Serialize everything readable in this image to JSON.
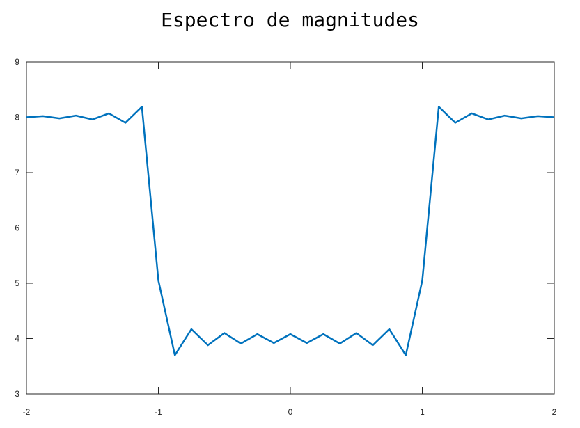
{
  "chart_data": {
    "type": "line",
    "title": "Espectro de magnitudes",
    "xlabel": "",
    "ylabel": "",
    "xlim": [
      -2,
      2
    ],
    "ylim": [
      3,
      9
    ],
    "xticks": [
      -2,
      -1,
      0,
      1,
      2
    ],
    "yticks": [
      3,
      4,
      5,
      6,
      7,
      8,
      9
    ],
    "xtick_labels": [
      "-2",
      "-1",
      "0",
      "1",
      "2"
    ],
    "ytick_labels": [
      "3",
      "4",
      "5",
      "6",
      "7",
      "8",
      "9"
    ],
    "grid": false,
    "line_color": "#0072BD",
    "series": [
      {
        "x": [
          -2.0,
          -1.875,
          -1.75,
          -1.625,
          -1.5,
          -1.375,
          -1.25,
          -1.125,
          -1.0,
          -0.875,
          -0.75,
          -0.625,
          -0.5,
          -0.375,
          -0.25,
          -0.125,
          0.0,
          0.125,
          0.25,
          0.375,
          0.5,
          0.625,
          0.75,
          0.875,
          1.0,
          1.125,
          1.25,
          1.375,
          1.5,
          1.625,
          1.75,
          1.875,
          2.0
        ],
        "y": [
          8.0,
          8.02,
          7.98,
          8.03,
          7.96,
          8.07,
          7.9,
          8.19,
          5.05,
          3.7,
          4.17,
          3.88,
          4.1,
          3.91,
          4.08,
          3.92,
          4.08,
          3.92,
          4.08,
          3.91,
          4.1,
          3.88,
          4.17,
          3.7,
          5.05,
          8.19,
          7.9,
          8.07,
          7.96,
          8.03,
          7.98,
          8.02,
          8.0
        ]
      }
    ]
  }
}
